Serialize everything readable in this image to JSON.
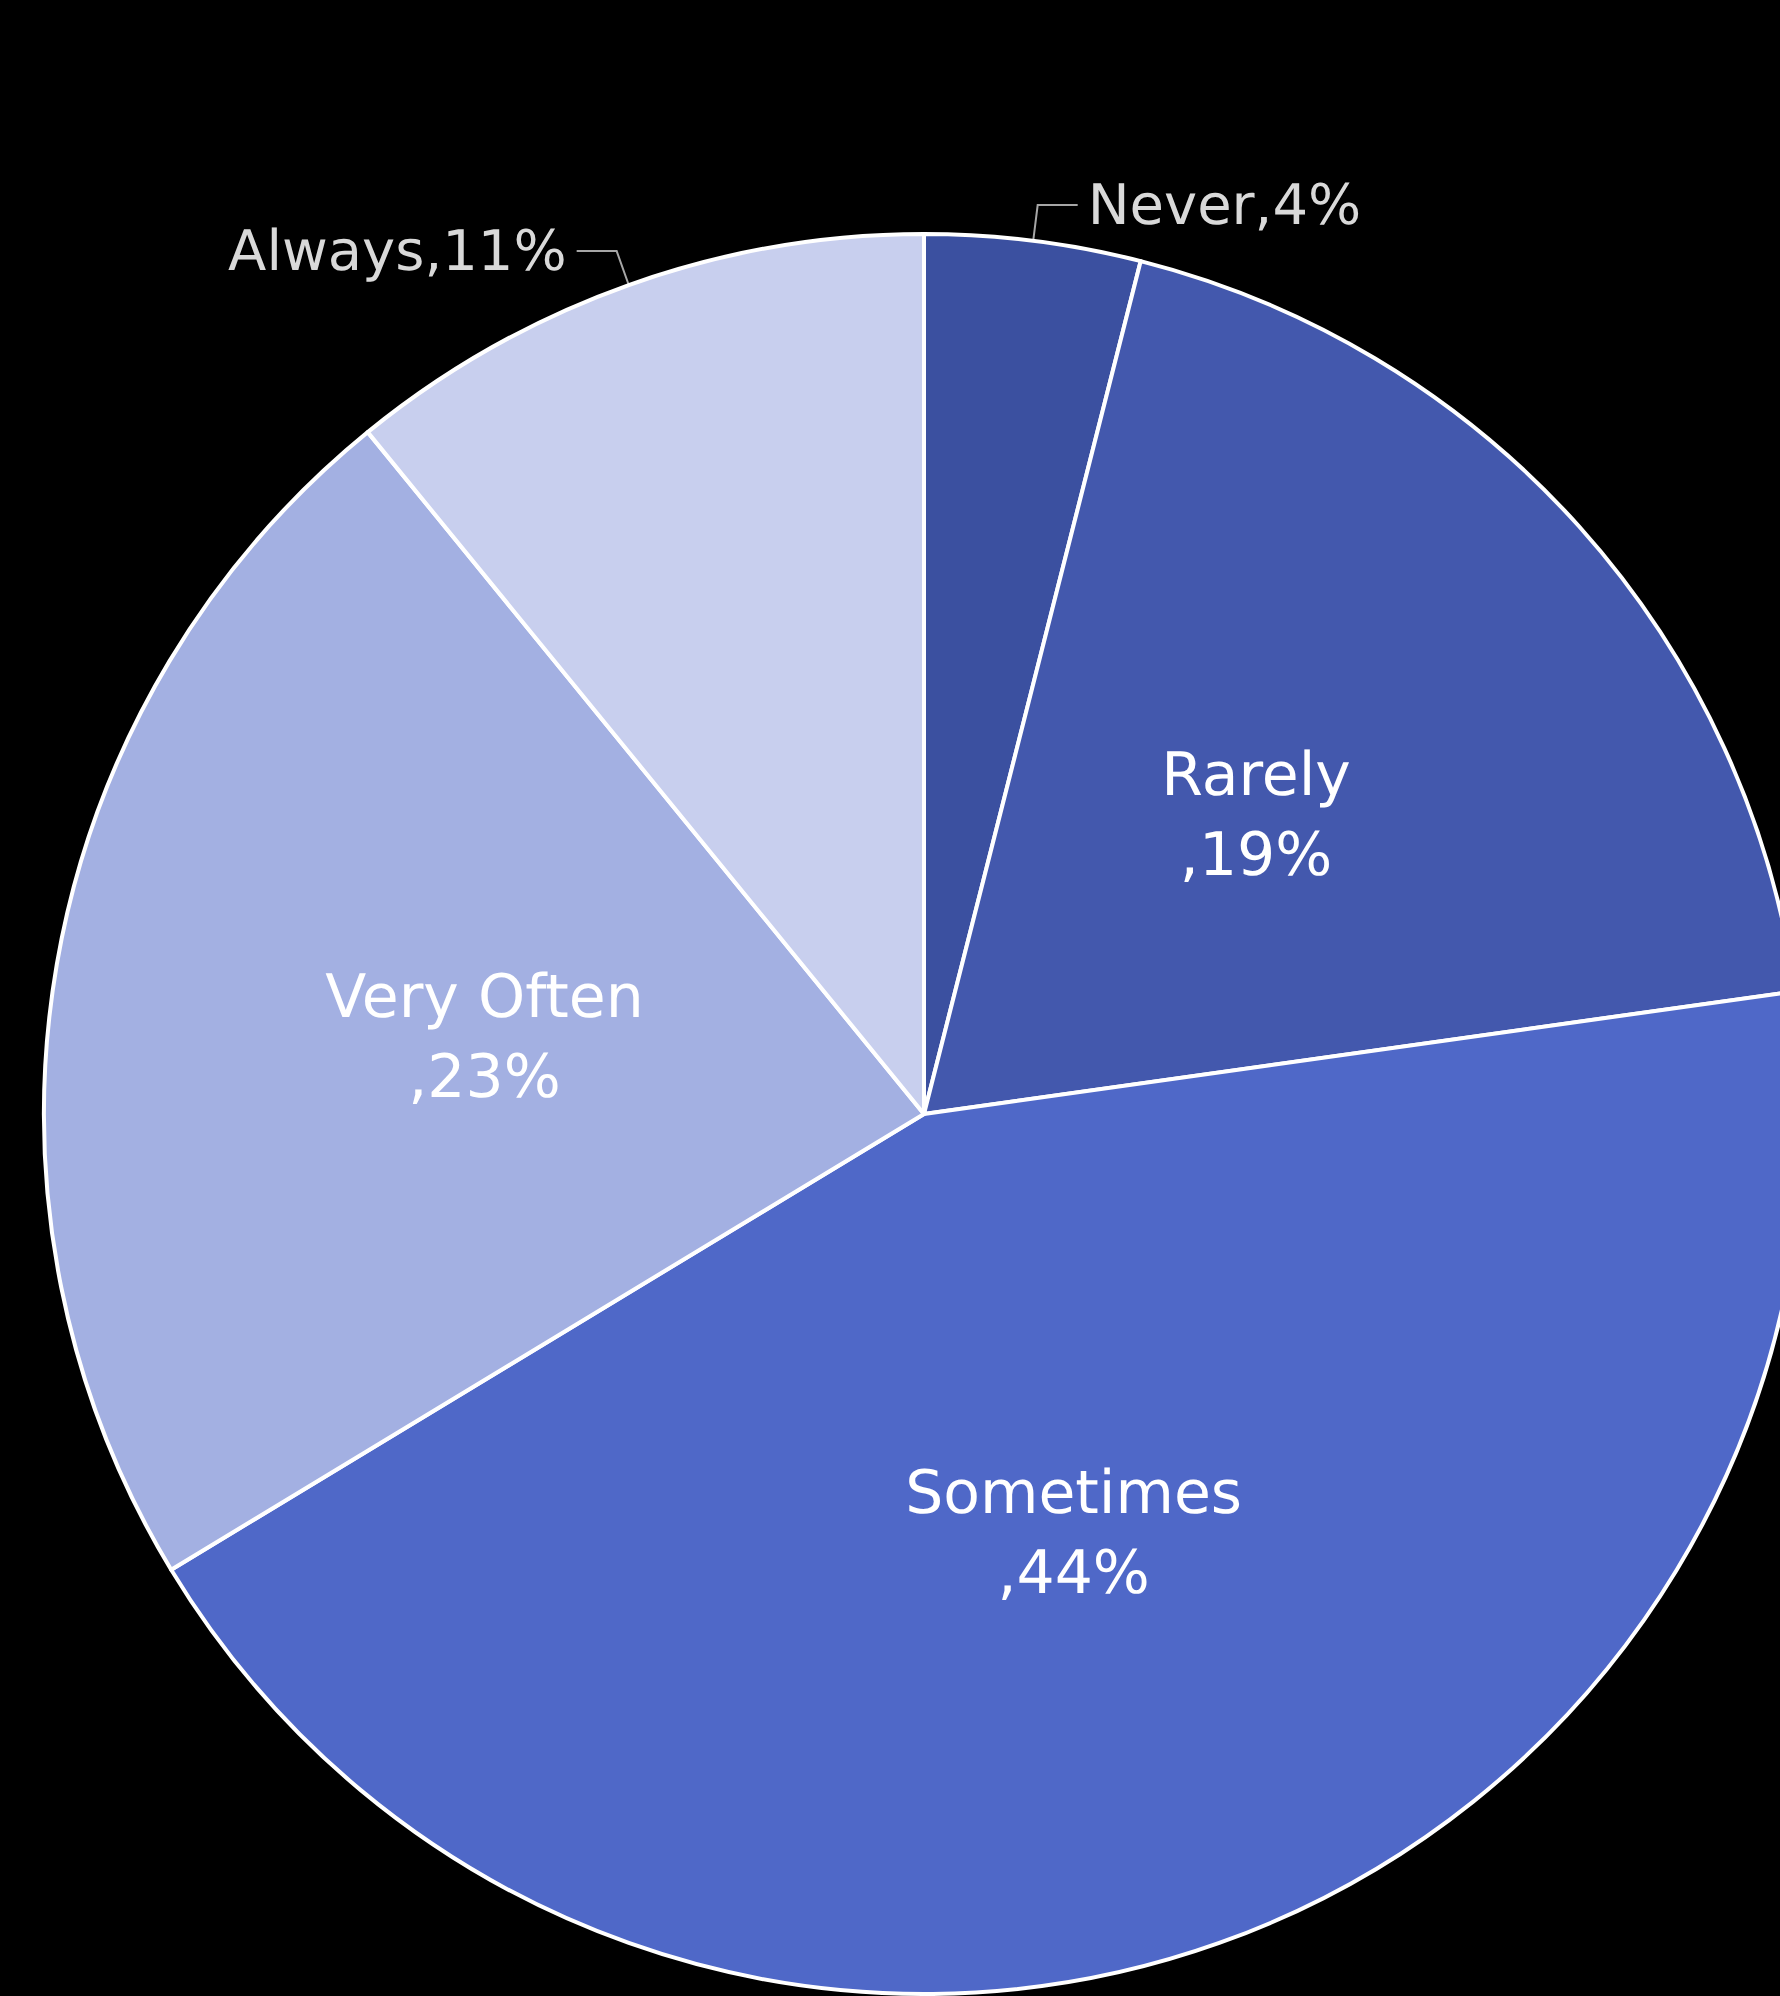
{
  "chart_data": {
    "type": "pie",
    "categories": [
      "Never",
      "Rarely",
      "Sometimes",
      "Very Often",
      "Always"
    ],
    "values": [
      4,
      19,
      44,
      23,
      11
    ],
    "colors": [
      "#3b50a0",
      "#4358ad",
      "#4f68c8",
      "#a3b0e2",
      "#c8cfee"
    ],
    "value_labels": [
      ",4%",
      ",19%",
      ",44%",
      ",23%",
      ",11%"
    ]
  }
}
